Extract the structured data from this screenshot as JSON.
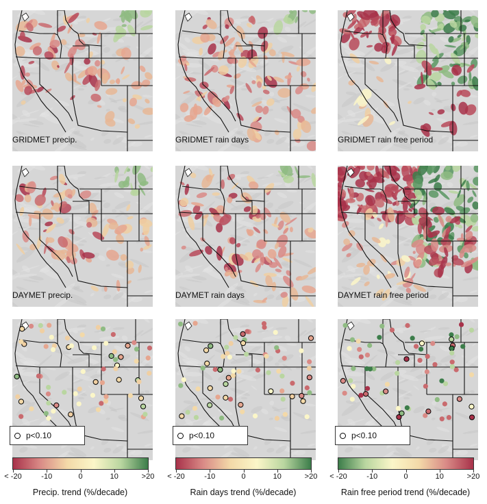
{
  "panels": [
    {
      "caption": "GRIDMET precip.",
      "kind": "map-precip"
    },
    {
      "caption": "GRIDMET rain days",
      "kind": "map-days"
    },
    {
      "caption": "GRIDMET rain free period",
      "kind": "map-free"
    },
    {
      "caption": "DAYMET precip.",
      "kind": "map-precip"
    },
    {
      "caption": "DAYMET rain days",
      "kind": "map-days"
    },
    {
      "caption": "DAYMET rain free period",
      "kind": "map-free"
    }
  ],
  "station_legend": "p<0.10",
  "colorbars": [
    {
      "title": "Precip. trend (%/decade)",
      "ticks": [
        "< -20",
        "-10",
        "0",
        "10",
        ">20"
      ],
      "gradient": [
        "#a8324a",
        "#d98a86",
        "#f3d9a8",
        "#fbf6c8",
        "#b9d6a0",
        "#3c7d4a"
      ]
    },
    {
      "title": "Rain days trend (%/decade)",
      "ticks": [
        "< -20",
        "-10",
        "0",
        "10",
        ">20"
      ],
      "gradient": [
        "#a8324a",
        "#d98a86",
        "#f3d9a8",
        "#fbf6c8",
        "#b9d6a0",
        "#3c7d4a"
      ]
    },
    {
      "title": "Rain free period trend (%/decade)",
      "ticks": [
        "< -20",
        "-10",
        "0",
        "10",
        ">20"
      ],
      "gradient": [
        "#3c7d4a",
        "#b9d6a0",
        "#fbf6c8",
        "#f3d9a8",
        "#d98a86",
        "#a8324a"
      ]
    }
  ],
  "colors": {
    "land": "#d6d6d6",
    "negative": "#a8324a",
    "positive": "#3c7d4a",
    "neutral": "#f3d9a8"
  }
}
